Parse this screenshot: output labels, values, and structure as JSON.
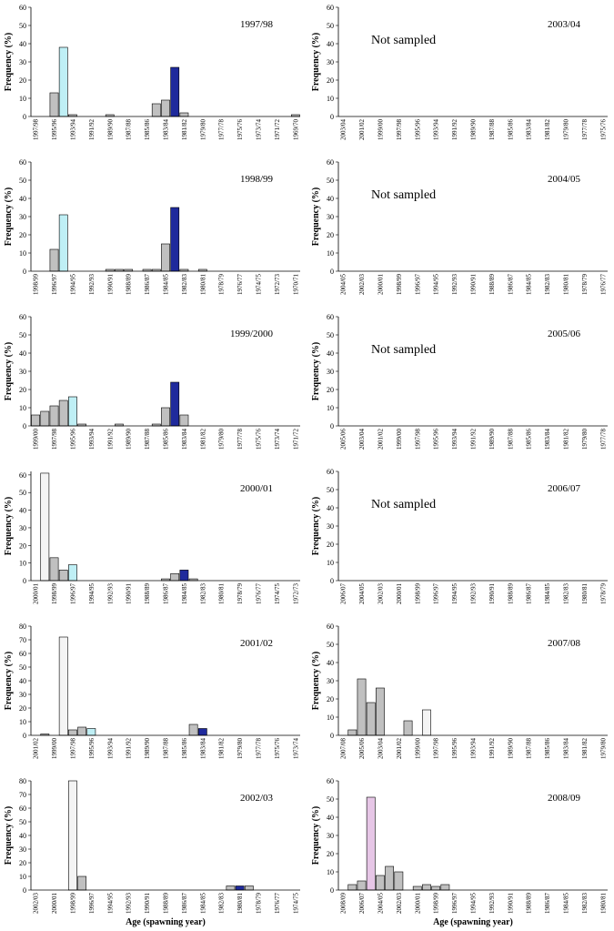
{
  "chart_data": [
    {
      "type": "bar",
      "title": "1997/98",
      "ylabel": "Frequency (%)",
      "ylim": [
        0,
        60
      ],
      "yticks": [
        0,
        10,
        20,
        30,
        40,
        50,
        60
      ],
      "color": "#c0c0c0",
      "categories": [
        "1997/98",
        null,
        "1995/96",
        null,
        "1993/94",
        null,
        "1991/92",
        null,
        "1989/90",
        null,
        "1987/88",
        null,
        "1985/86",
        null,
        "1983/84",
        null,
        "1981/82",
        null,
        "1979/80",
        null,
        "1977/78",
        null,
        "1975/76",
        null,
        "1973/74",
        null,
        "1971/72",
        null,
        "1969/70"
      ],
      "values": [
        0,
        0,
        13,
        38,
        1,
        0,
        0,
        0,
        1,
        0,
        0,
        0,
        0,
        7,
        9,
        27,
        2,
        0,
        0,
        0,
        0,
        0,
        0,
        0,
        0,
        0,
        0,
        0,
        1
      ],
      "colors": [
        "#c0c0c0",
        "#c0c0c0",
        "#c0c0c0",
        "#bfeff5",
        "#c0c0c0",
        "#c0c0c0",
        "#c0c0c0",
        "#c0c0c0",
        "#c0c0c0",
        "#c0c0c0",
        "#c0c0c0",
        "#c0c0c0",
        "#c0c0c0",
        "#c0c0c0",
        "#c0c0c0",
        "#1f2a9c",
        "#c0c0c0",
        "#c0c0c0",
        "#c0c0c0",
        "#c0c0c0",
        "#c0c0c0",
        "#c0c0c0",
        "#c0c0c0",
        "#c0c0c0",
        "#c0c0c0",
        "#c0c0c0",
        "#c0c0c0",
        "#c0c0c0",
        "#c0c0c0"
      ]
    },
    {
      "type": "bar",
      "title": "1998/99",
      "ylabel": "Frequency (%)",
      "ylim": [
        0,
        60
      ],
      "yticks": [
        0,
        10,
        20,
        30,
        40,
        50,
        60
      ],
      "color": "#c0c0c0",
      "categories": [
        "1998/99",
        null,
        "1996/97",
        null,
        "1994/95",
        null,
        "1992/93",
        null,
        "1990/91",
        null,
        "1988/89",
        null,
        "1986/87",
        null,
        "1984/85",
        null,
        "1982/83",
        null,
        "1980/81",
        null,
        "1978/79",
        null,
        "1976/77",
        null,
        "1974/75",
        null,
        "1972/73",
        null,
        "1970/71"
      ],
      "values": [
        0,
        0,
        12,
        31,
        0,
        0,
        0,
        0,
        1,
        1,
        1,
        0,
        1,
        1,
        15,
        35,
        1,
        0,
        1,
        0,
        0,
        0,
        0,
        0,
        0,
        0,
        0,
        0,
        0
      ],
      "colors": [
        "#c0c0c0",
        "#c0c0c0",
        "#c0c0c0",
        "#bfeff5",
        "#c0c0c0",
        "#c0c0c0",
        "#c0c0c0",
        "#c0c0c0",
        "#c0c0c0",
        "#c0c0c0",
        "#c0c0c0",
        "#c0c0c0",
        "#c0c0c0",
        "#c0c0c0",
        "#c0c0c0",
        "#1f2a9c",
        "#c0c0c0",
        "#c0c0c0",
        "#c0c0c0",
        "#c0c0c0",
        "#c0c0c0",
        "#c0c0c0",
        "#c0c0c0",
        "#c0c0c0",
        "#c0c0c0",
        "#c0c0c0",
        "#c0c0c0",
        "#c0c0c0",
        "#c0c0c0"
      ]
    },
    {
      "type": "bar",
      "title": "1999/2000",
      "ylabel": "Frequency (%)",
      "ylim": [
        0,
        60
      ],
      "yticks": [
        0,
        10,
        20,
        30,
        40,
        50,
        60
      ],
      "color": "#c0c0c0",
      "categories": [
        "1999/00",
        null,
        "1997/98",
        null,
        "1995/96",
        null,
        "1993/94",
        null,
        "1991/92",
        null,
        "1989/90",
        null,
        "1987/88",
        null,
        "1985/86",
        null,
        "1983/84",
        null,
        "1981/82",
        null,
        "1979/80",
        null,
        "1977/78",
        null,
        "1975/76",
        null,
        "1973/74",
        null,
        "1971/72"
      ],
      "values": [
        6,
        8,
        11,
        14,
        16,
        1,
        0,
        0,
        0,
        1,
        0,
        0,
        0,
        1,
        10,
        24,
        6,
        0,
        0,
        0,
        0,
        0,
        0,
        0,
        0,
        0,
        0,
        0,
        0
      ],
      "colors": [
        "#c0c0c0",
        "#c0c0c0",
        "#c0c0c0",
        "#c0c0c0",
        "#bfeff5",
        "#c0c0c0",
        "#c0c0c0",
        "#c0c0c0",
        "#c0c0c0",
        "#c0c0c0",
        "#c0c0c0",
        "#c0c0c0",
        "#c0c0c0",
        "#c0c0c0",
        "#c0c0c0",
        "#1f2a9c",
        "#c0c0c0",
        "#c0c0c0",
        "#c0c0c0",
        "#c0c0c0",
        "#c0c0c0",
        "#c0c0c0",
        "#c0c0c0",
        "#c0c0c0",
        "#c0c0c0",
        "#c0c0c0",
        "#c0c0c0",
        "#c0c0c0",
        "#c0c0c0"
      ]
    },
    {
      "type": "bar",
      "title": "2000/01",
      "ylabel": "Frequency (%)",
      "ylim": [
        0,
        62
      ],
      "yticks": [
        0,
        10,
        20,
        30,
        40,
        50,
        60
      ],
      "color": "#c0c0c0",
      "categories": [
        "2000/01",
        null,
        "1998/99",
        null,
        "1996/97",
        null,
        "1994/95",
        null,
        "1992/93",
        null,
        "1990/91",
        null,
        "1988/89",
        null,
        "1986/87",
        null,
        "1984/85",
        null,
        "1982/83",
        null,
        "1980/81",
        null,
        "1978/79",
        null,
        "1976/77",
        null,
        "1974/75",
        null,
        "1972/73"
      ],
      "values": [
        0,
        61,
        13,
        6,
        9,
        0,
        0,
        0,
        0,
        0,
        0,
        0,
        0,
        0,
        1,
        4,
        6,
        1,
        0,
        0,
        0,
        0,
        0,
        0,
        0,
        0,
        0,
        0,
        0
      ],
      "colors": [
        "#c0c0c0",
        "#f4f4f4",
        "#c0c0c0",
        "#c0c0c0",
        "#bfeff5",
        "#c0c0c0",
        "#c0c0c0",
        "#c0c0c0",
        "#c0c0c0",
        "#c0c0c0",
        "#c0c0c0",
        "#c0c0c0",
        "#c0c0c0",
        "#c0c0c0",
        "#c0c0c0",
        "#c0c0c0",
        "#1f2a9c",
        "#c0c0c0",
        "#c0c0c0",
        "#c0c0c0",
        "#c0c0c0",
        "#c0c0c0",
        "#c0c0c0",
        "#c0c0c0",
        "#c0c0c0",
        "#c0c0c0",
        "#c0c0c0",
        "#c0c0c0",
        "#c0c0c0"
      ]
    },
    {
      "type": "bar",
      "title": "2001/02",
      "ylabel": "Frequency (%)",
      "ylim": [
        0,
        80
      ],
      "yticks": [
        0,
        10,
        20,
        30,
        40,
        50,
        60,
        70,
        80
      ],
      "color": "#c0c0c0",
      "categories": [
        "2001/02",
        null,
        "1999/00",
        null,
        "1997/98",
        null,
        "1995/96",
        null,
        "1993/94",
        null,
        "1991/92",
        null,
        "1989/90",
        null,
        "1987/88",
        null,
        "1985/86",
        null,
        "1983/84",
        null,
        "1981/82",
        null,
        "1979/80",
        null,
        "1977/78",
        null,
        "1975/76",
        null,
        "1973/74"
      ],
      "values": [
        0,
        1,
        0,
        72,
        4,
        6,
        5,
        0,
        0,
        0,
        0,
        0,
        0,
        0,
        0,
        0,
        0,
        8,
        5,
        0,
        0,
        0,
        0,
        0,
        0,
        0,
        0,
        0,
        0
      ],
      "colors": [
        "#c0c0c0",
        "#c0c0c0",
        "#c0c0c0",
        "#f4f4f4",
        "#c0c0c0",
        "#c0c0c0",
        "#bfeff5",
        "#c0c0c0",
        "#c0c0c0",
        "#c0c0c0",
        "#c0c0c0",
        "#c0c0c0",
        "#c0c0c0",
        "#c0c0c0",
        "#c0c0c0",
        "#c0c0c0",
        "#c0c0c0",
        "#c0c0c0",
        "#1f2a9c",
        "#c0c0c0",
        "#c0c0c0",
        "#c0c0c0",
        "#c0c0c0",
        "#c0c0c0",
        "#c0c0c0",
        "#c0c0c0",
        "#c0c0c0",
        "#c0c0c0",
        "#c0c0c0"
      ]
    },
    {
      "type": "bar",
      "title": "2002/03",
      "ylabel": "Frequency (%)",
      "xlabel": "Age (spawning year)",
      "ylim": [
        0,
        80
      ],
      "yticks": [
        0,
        10,
        20,
        30,
        40,
        50,
        60,
        70,
        80
      ],
      "color": "#c0c0c0",
      "categories": [
        "2002/03",
        null,
        "2000/01",
        null,
        "1998/99",
        null,
        "1996/97",
        null,
        "1994/95",
        null,
        "1992/93",
        null,
        "1990/91",
        null,
        "1988/89",
        null,
        "1986/87",
        null,
        "1984/85",
        null,
        "1982/83",
        null,
        "1980/81",
        null,
        "1978/79",
        null,
        "1976/77",
        null,
        "1974/75"
      ],
      "values": [
        0,
        0,
        0,
        0,
        80,
        10,
        0,
        0,
        0,
        0,
        0,
        0,
        0,
        0,
        0,
        0,
        0,
        0,
        0,
        0,
        0,
        3,
        3,
        3,
        0,
        0,
        0,
        0,
        0
      ],
      "colors": [
        "#c0c0c0",
        "#c0c0c0",
        "#c0c0c0",
        "#c0c0c0",
        "#f4f4f4",
        "#c0c0c0",
        "#c0c0c0",
        "#c0c0c0",
        "#c0c0c0",
        "#c0c0c0",
        "#c0c0c0",
        "#c0c0c0",
        "#c0c0c0",
        "#c0c0c0",
        "#c0c0c0",
        "#c0c0c0",
        "#c0c0c0",
        "#c0c0c0",
        "#c0c0c0",
        "#c0c0c0",
        "#c0c0c0",
        "#c0c0c0",
        "#1f2a9c",
        "#c0c0c0",
        "#c0c0c0",
        "#c0c0c0",
        "#c0c0c0",
        "#c0c0c0",
        "#c0c0c0"
      ]
    },
    {
      "type": "bar",
      "title": "2003/04",
      "annotation": "Not sampled",
      "ylabel": "Frequency (%)",
      "ylim": [
        0,
        60
      ],
      "yticks": [
        0,
        10,
        20,
        30,
        40,
        50,
        60
      ],
      "categories": [
        "2003/04",
        null,
        "2001/02",
        null,
        "1999/00",
        null,
        "1997/98",
        null,
        "1995/96",
        null,
        "1993/94",
        null,
        "1991/92",
        null,
        "1989/90",
        null,
        "1987/88",
        null,
        "1985/86",
        null,
        "1983/84",
        null,
        "1981/82",
        null,
        "1979/80",
        null,
        "1977/78",
        null,
        "1975/76"
      ]
    },
    {
      "type": "bar",
      "title": "2004/05",
      "annotation": "Not sampled",
      "ylabel": "Frequency (%)",
      "ylim": [
        0,
        60
      ],
      "yticks": [
        0,
        10,
        20,
        30,
        40,
        50,
        60
      ],
      "categories": [
        "2004/05",
        null,
        "2002/03",
        null,
        "2000/01",
        null,
        "1998/99",
        null,
        "1996/97",
        null,
        "1994/95",
        null,
        "1992/93",
        null,
        "1990/91",
        null,
        "1988/89",
        null,
        "1986/87",
        null,
        "1984/85",
        null,
        "1982/83",
        null,
        "1980/81",
        null,
        "1978/79",
        null,
        "1976/77"
      ]
    },
    {
      "type": "bar",
      "title": "2005/06",
      "annotation": "Not sampled",
      "ylabel": "Frequency (%)",
      "ylim": [
        0,
        60
      ],
      "yticks": [
        0,
        10,
        20,
        30,
        40,
        50,
        60
      ],
      "categories": [
        "2005/06",
        null,
        "2003/04",
        null,
        "2001/02",
        null,
        "1999/00",
        null,
        "1997/98",
        null,
        "1995/96",
        null,
        "1993/94",
        null,
        "1991/92",
        null,
        "1989/90",
        null,
        "1987/88",
        null,
        "1985/86",
        null,
        "1983/84",
        null,
        "1981/82",
        null,
        "1979/80",
        null,
        "1977/78"
      ]
    },
    {
      "type": "bar",
      "title": "2006/07",
      "annotation": "Not sampled",
      "ylabel": "Frequency (%)",
      "ylim": [
        0,
        60
      ],
      "yticks": [
        0,
        10,
        20,
        30,
        40,
        50,
        60
      ],
      "categories": [
        "2006/07",
        null,
        "2004/05",
        null,
        "2002/03",
        null,
        "2000/01",
        null,
        "1998/99",
        null,
        "1996/97",
        null,
        "1994/95",
        null,
        "1992/93",
        null,
        "1990/91",
        null,
        "1988/89",
        null,
        "1986/87",
        null,
        "1984/85",
        null,
        "1982/83",
        null,
        "1980/81",
        null,
        "1978/79"
      ]
    },
    {
      "type": "bar",
      "title": "2007/08",
      "ylabel": "Frequency (%)",
      "ylim": [
        0,
        60
      ],
      "yticks": [
        0,
        10,
        20,
        30,
        40,
        50,
        60
      ],
      "color": "#c0c0c0",
      "categories": [
        "2007/08",
        null,
        "2005/06",
        null,
        "2003/04",
        null,
        "2001/02",
        null,
        "1999/00",
        null,
        "1997/98",
        null,
        "1995/96",
        null,
        "1993/94",
        null,
        "1991/92",
        null,
        "1989/90",
        null,
        "1987/88",
        null,
        "1985/86",
        null,
        "1983/84",
        null,
        "1981/82",
        null,
        "1979/80"
      ],
      "values": [
        0,
        3,
        31,
        18,
        26,
        0,
        0,
        8,
        0,
        14,
        0,
        0,
        0,
        0,
        0,
        0,
        0,
        0,
        0,
        0,
        0,
        0,
        0,
        0,
        0,
        0,
        0,
        0,
        0
      ],
      "colors": [
        "#c0c0c0",
        "#c0c0c0",
        "#c0c0c0",
        "#c0c0c0",
        "#c0c0c0",
        "#c0c0c0",
        "#c0c0c0",
        "#c0c0c0",
        "#c0c0c0",
        "#f4f4f4",
        "#c0c0c0",
        "#c0c0c0",
        "#c0c0c0",
        "#c0c0c0",
        "#c0c0c0",
        "#c0c0c0",
        "#c0c0c0",
        "#c0c0c0",
        "#c0c0c0",
        "#c0c0c0",
        "#c0c0c0",
        "#c0c0c0",
        "#c0c0c0",
        "#c0c0c0",
        "#c0c0c0",
        "#c0c0c0",
        "#c0c0c0",
        "#c0c0c0",
        "#c0c0c0"
      ]
    },
    {
      "type": "bar",
      "title": "2008/09",
      "ylabel": "Frequency (%)",
      "xlabel": "Age (spawning year)",
      "ylim": [
        0,
        60
      ],
      "yticks": [
        0,
        10,
        20,
        30,
        40,
        50,
        60
      ],
      "color": "#c0c0c0",
      "categories": [
        "2008/09",
        null,
        "2006/07",
        null,
        "2004/05",
        null,
        "2002/03",
        null,
        "2000/01",
        null,
        "1998/99",
        null,
        "1996/97",
        null,
        "1994/95",
        null,
        "1992/93",
        null,
        "1990/91",
        null,
        "1988/89",
        null,
        "1986/87",
        null,
        "1984/85",
        null,
        "1982/83",
        null,
        "1980/81"
      ],
      "values": [
        0,
        3,
        5,
        51,
        8,
        13,
        10,
        0,
        2,
        3,
        2,
        3,
        0,
        0,
        0,
        0,
        0,
        0,
        0,
        0,
        0,
        0,
        0,
        0,
        0,
        0,
        0,
        0,
        0
      ],
      "colors": [
        "#c0c0c0",
        "#c0c0c0",
        "#c0c0c0",
        "#e6c6e6",
        "#c0c0c0",
        "#c0c0c0",
        "#c0c0c0",
        "#c0c0c0",
        "#c0c0c0",
        "#c0c0c0",
        "#c0c0c0",
        "#c0c0c0",
        "#c0c0c0",
        "#c0c0c0",
        "#c0c0c0",
        "#c0c0c0",
        "#c0c0c0",
        "#c0c0c0",
        "#c0c0c0",
        "#c0c0c0",
        "#c0c0c0",
        "#c0c0c0",
        "#c0c0c0",
        "#c0c0c0",
        "#c0c0c0",
        "#c0c0c0",
        "#c0c0c0",
        "#c0c0c0",
        "#c0c0c0"
      ]
    }
  ]
}
